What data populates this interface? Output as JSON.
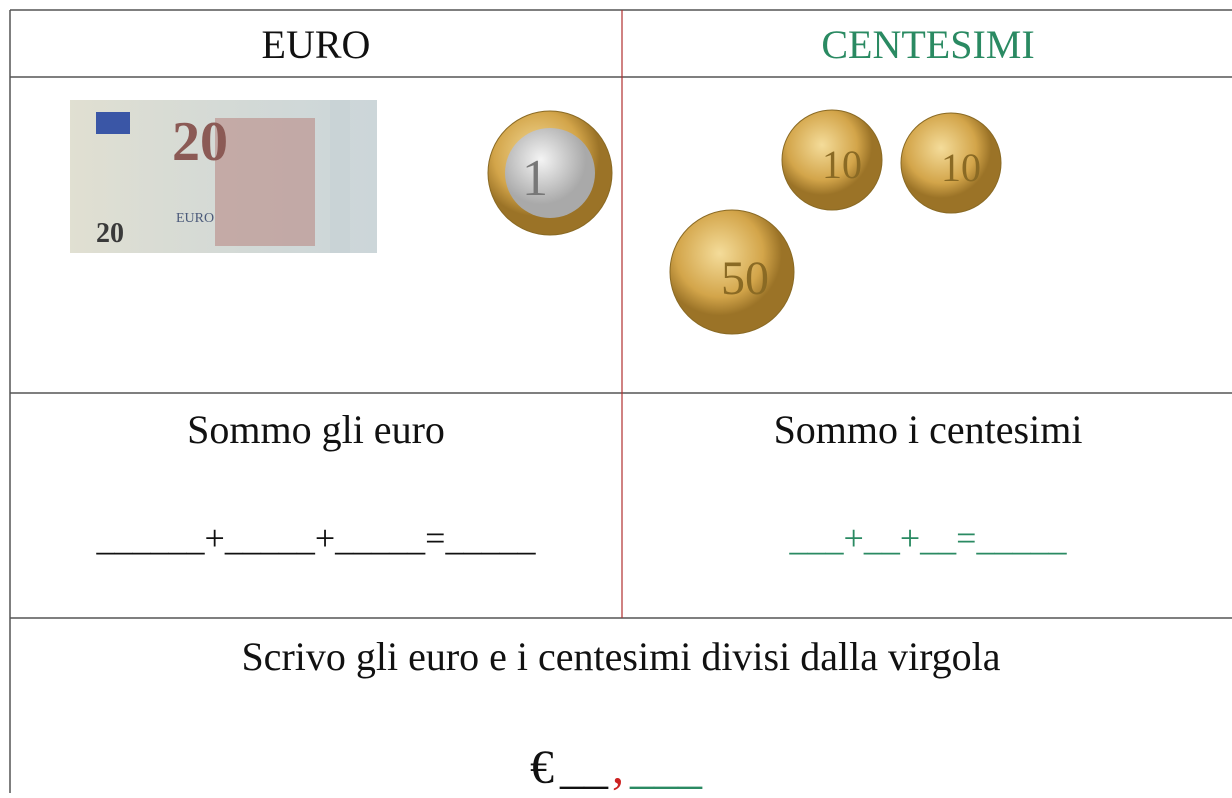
{
  "header": {
    "left": "EURO",
    "right": "CENTESIMI"
  },
  "images": {
    "banknote": {
      "value": "20",
      "text": "EURO"
    },
    "coins_euro": [
      "1"
    ],
    "coins_cent": [
      "10",
      "10",
      "50"
    ]
  },
  "sums": {
    "left": {
      "title": "Sommo gli euro",
      "line": "______+_____+_____=_____"
    },
    "right": {
      "title": "Sommo i centesimi",
      "line": "___+__+__=_____"
    }
  },
  "result": {
    "instruction": "Scrivo gli euro e i centesimi divisi dalla virgola",
    "euro_sign": "€",
    "euro_blank": "__",
    "comma": ",",
    "cent_blank": "___"
  }
}
